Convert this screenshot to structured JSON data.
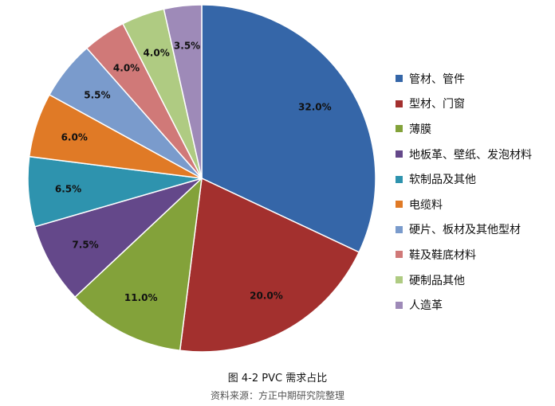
{
  "chart_data": {
    "type": "pie",
    "title": "图 4-2 PVC 需求占比",
    "source": "资料来源：方正中期研究院整理",
    "value_unit": "%",
    "legend_position": "right",
    "slices": [
      {
        "label": "管材、管件",
        "value": 32.0,
        "display": "32.0%",
        "color": "#3566A8"
      },
      {
        "label": "型材、门窗",
        "value": 20.0,
        "display": "20.0%",
        "color": "#A3302E"
      },
      {
        "label": "薄膜",
        "value": 11.0,
        "display": "11.0%",
        "color": "#83A23A"
      },
      {
        "label": "地板革、壁纸、发泡材料",
        "value": 7.5,
        "display": "7.5%",
        "color": "#64488A"
      },
      {
        "label": "软制品及其他",
        "value": 6.5,
        "display": "6.5%",
        "color": "#2E93AE"
      },
      {
        "label": "电缆料",
        "value": 6.0,
        "display": "6.0%",
        "color": "#E07A26"
      },
      {
        "label": "硬片、板材及其他型材",
        "value": 5.5,
        "display": "5.5%",
        "color": "#7A9BCC"
      },
      {
        "label": "鞋及鞋底材料",
        "value": 4.0,
        "display": "4.0%",
        "color": "#D07978"
      },
      {
        "label": "硬制品其他",
        "value": 4.0,
        "display": "4.0%",
        "color": "#AFCB82"
      },
      {
        "label": "人造革",
        "value": 3.5,
        "display": "3.5%",
        "color": "#9E8AB8"
      }
    ]
  }
}
